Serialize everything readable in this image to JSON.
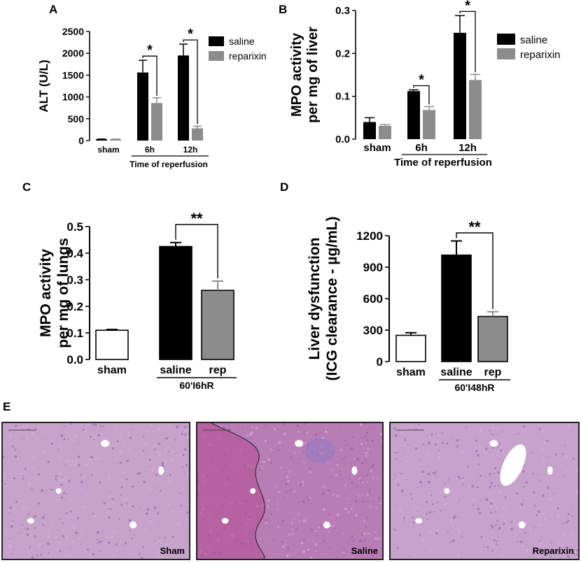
{
  "panels": {
    "A": {
      "letter": "A",
      "chart_data": {
        "type": "bar",
        "ylabel": "ALT (U/L)",
        "xlabel": "Time of reperfusion",
        "categories": [
          "sham",
          "6h",
          "12h"
        ],
        "ylim": [
          0,
          2500
        ],
        "yticks": [
          "0",
          "500",
          "1000",
          "1500",
          "2000",
          "2500"
        ],
        "series": [
          {
            "name": "saline",
            "color": "#000000",
            "values": [
              30,
              1560,
              1950
            ],
            "errors": [
              5,
              280,
              260
            ]
          },
          {
            "name": "reparixin",
            "color": "#8c8c8c",
            "values": [
              30,
              860,
              280
            ],
            "errors": [
              5,
              120,
              50
            ]
          }
        ],
        "significance": [
          {
            "group": "6h",
            "label": "*"
          },
          {
            "group": "12h",
            "label": "*"
          }
        ],
        "legend": "right"
      }
    },
    "B": {
      "letter": "B",
      "chart_data": {
        "type": "bar",
        "ylabel": "MPO activity",
        "ylabel2": "per mg of liver",
        "xlabel": "Time of reperfusion",
        "categories": [
          "sham",
          "6h",
          "12h"
        ],
        "ylim": [
          0,
          0.3
        ],
        "yticks": [
          "0.0",
          "0.1",
          "0.2",
          "0.3"
        ],
        "series": [
          {
            "name": "saline",
            "color": "#000000",
            "values": [
              0.04,
              0.112,
              0.248
            ],
            "errors": [
              0.01,
              0.003,
              0.04
            ]
          },
          {
            "name": "reparixin",
            "color": "#8c8c8c",
            "values": [
              0.031,
              0.068,
              0.138
            ],
            "errors": [
              0.003,
              0.008,
              0.013
            ]
          }
        ],
        "significance": [
          {
            "group": "6h",
            "label": "*"
          },
          {
            "group": "12h",
            "label": "*"
          }
        ],
        "legend": "right"
      }
    },
    "C": {
      "letter": "C",
      "chart_data": {
        "type": "bar",
        "ylabel": "MPO activity",
        "ylabel2": "per mg of lungs",
        "xlabel": "60'I6hR",
        "categories": [
          "sham",
          "saline",
          "rep"
        ],
        "ylim": [
          0,
          0.5
        ],
        "yticks": [
          "0.0",
          "0.1",
          "0.2",
          "0.3",
          "0.4",
          "0.5"
        ],
        "values": [
          0.11,
          0.425,
          0.26
        ],
        "errors": [
          0.003,
          0.015,
          0.035
        ],
        "colors": [
          "#ffffff",
          "#000000",
          "#8c8c8c"
        ],
        "significance": [
          {
            "from": "saline",
            "to": "rep",
            "label": "**"
          }
        ]
      }
    },
    "D": {
      "letter": "D",
      "chart_data": {
        "type": "bar",
        "ylabel": "Liver dysfunction",
        "ylabel2": "(ICG clearance - µg/mL)",
        "xlabel": "60'I48hR",
        "categories": [
          "sham",
          "saline",
          "rep"
        ],
        "ylim": [
          0,
          1200
        ],
        "yticks": [
          "0",
          "300",
          "600",
          "900",
          "1200"
        ],
        "values": [
          250,
          1015,
          430
        ],
        "errors": [
          25,
          135,
          45
        ],
        "colors": [
          "#ffffff",
          "#000000",
          "#8c8c8c"
        ],
        "significance": [
          {
            "from": "saline",
            "to": "rep",
            "label": "**"
          }
        ]
      }
    },
    "E": {
      "letter": "E",
      "images": [
        {
          "caption": "Sham",
          "tone": "#c7a3cc"
        },
        {
          "caption": "Saline",
          "tone": "#b97db6"
        },
        {
          "caption": "Reparixin",
          "tone": "#c6a2cc"
        }
      ]
    }
  }
}
